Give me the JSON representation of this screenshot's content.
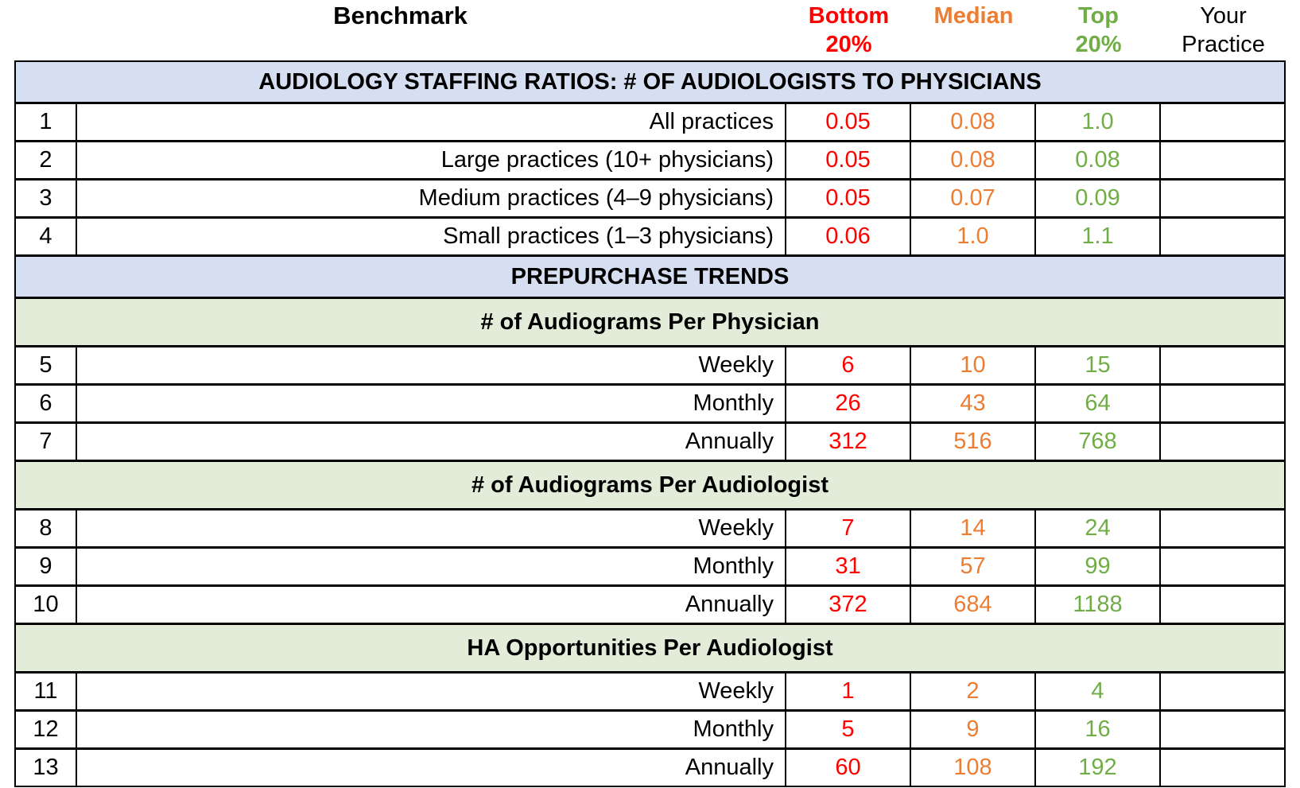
{
  "header": {
    "benchmark": "Benchmark",
    "bottom_20": {
      "line1": "Bottom",
      "line2": "20%"
    },
    "median": {
      "line1": "Median",
      "line2": ""
    },
    "top_20": {
      "line1": "Top",
      "line2": "20%"
    },
    "your_practice": {
      "line1": "Your",
      "line2": "Practice"
    }
  },
  "sections": {
    "staffing": "AUDIOLOGY STAFFING RATIOS: # OF AUDIOLOGISTS TO PHYSICIANS",
    "prepurchase": "PREPURCHASE TRENDS",
    "audiograms_per_physician": "# of Audiograms Per Physician",
    "audiograms_per_audiologist": "# of Audiograms Per Audiologist",
    "ha_opportunities_per_audiologist": "HA Opportunities Per Audiologist"
  },
  "rows": [
    {
      "num": "1",
      "label": "All practices",
      "bottom": "0.05",
      "median": "0.08",
      "top": "1.0",
      "practice": ""
    },
    {
      "num": "2",
      "label": "Large practices (10+ physicians)",
      "bottom": "0.05",
      "median": "0.08",
      "top": "0.08",
      "practice": ""
    },
    {
      "num": "3",
      "label": "Medium practices (4–9 physicians)",
      "bottom": "0.05",
      "median": "0.07",
      "top": "0.09",
      "practice": ""
    },
    {
      "num": "4",
      "label": "Small practices (1–3 physicians)",
      "bottom": "0.06",
      "median": "1.0",
      "top": "1.1",
      "practice": ""
    },
    {
      "num": "5",
      "label": "Weekly",
      "bottom": "6",
      "median": "10",
      "top": "15",
      "practice": ""
    },
    {
      "num": "6",
      "label": "Monthly",
      "bottom": "26",
      "median": "43",
      "top": "64",
      "practice": ""
    },
    {
      "num": "7",
      "label": "Annually",
      "bottom": "312",
      "median": "516",
      "top": "768",
      "practice": ""
    },
    {
      "num": "8",
      "label": "Weekly",
      "bottom": "7",
      "median": "14",
      "top": "24",
      "practice": ""
    },
    {
      "num": "9",
      "label": "Monthly",
      "bottom": "31",
      "median": "57",
      "top": "99",
      "practice": ""
    },
    {
      "num": "10",
      "label": "Annually",
      "bottom": "372",
      "median": "684",
      "top": "1188",
      "practice": ""
    },
    {
      "num": "11",
      "label": "Weekly",
      "bottom": "1",
      "median": "2",
      "top": "4",
      "practice": ""
    },
    {
      "num": "12",
      "label": "Monthly",
      "bottom": "5",
      "median": "9",
      "top": "16",
      "practice": ""
    },
    {
      "num": "13",
      "label": "Annually",
      "bottom": "60",
      "median": "108",
      "top": "192",
      "practice": ""
    }
  ],
  "colors": {
    "bottom_20_text": "#ff0000",
    "median_text": "#ed7d31",
    "top_20_text": "#70ad47",
    "blue_band_bg": "#d6def1",
    "green_band_bg": "#e2ecd9",
    "border": "#000000"
  }
}
